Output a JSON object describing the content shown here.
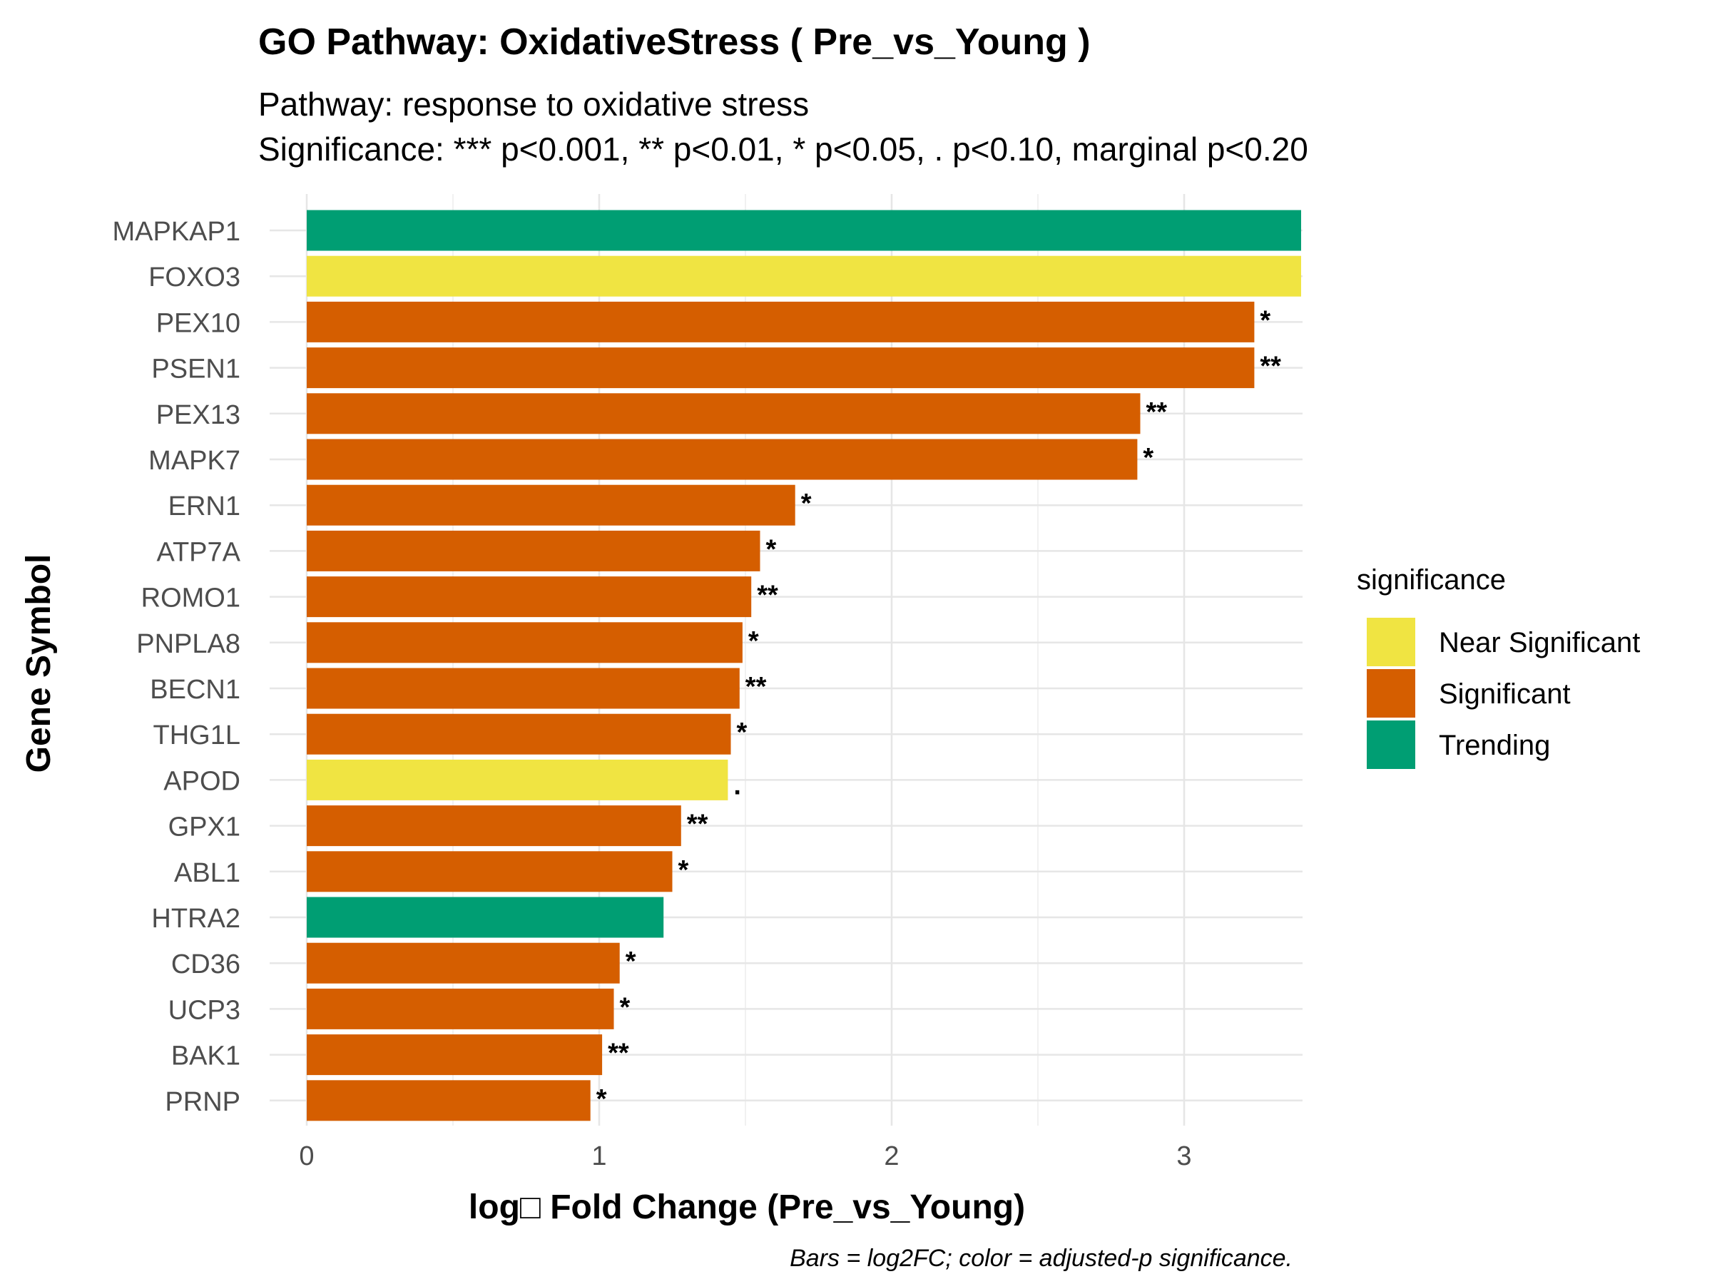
{
  "chart_data": {
    "type": "bar",
    "orientation": "horizontal",
    "title": "GO Pathway: OxidativeStress ( Pre_vs_Young )",
    "subtitle_lines": [
      "Pathway: response to oxidative stress",
      "Significance: *** p<0.001, ** p<0.01, * p<0.05, . p<0.10, marginal p<0.20"
    ],
    "xlabel": "log□ Fold Change (Pre_vs_Young)",
    "ylabel": "Gene Symbol",
    "caption": "Bars = log2FC; color = adjusted-p significance.",
    "xlim": [
      0,
      3.4
    ],
    "x_ticks": [
      0,
      1,
      2,
      3
    ],
    "grid": true,
    "legend": {
      "title": "significance",
      "placement": "right",
      "entries": [
        {
          "label": "Near Significant",
          "color": "#F0E442"
        },
        {
          "label": "Significant",
          "color": "#D55E00"
        },
        {
          "label": "Trending",
          "color": "#009E73"
        }
      ]
    },
    "bars": [
      {
        "gene": "MAPKAP1",
        "value": 3.4,
        "significance": "Trending",
        "label": ""
      },
      {
        "gene": "FOXO3",
        "value": 3.4,
        "significance": "Near Significant",
        "label": ""
      },
      {
        "gene": "PEX10",
        "value": 3.24,
        "significance": "Significant",
        "label": "*"
      },
      {
        "gene": "PSEN1",
        "value": 3.24,
        "significance": "Significant",
        "label": "**"
      },
      {
        "gene": "PEX13",
        "value": 2.85,
        "significance": "Significant",
        "label": "**"
      },
      {
        "gene": "MAPK7",
        "value": 2.84,
        "significance": "Significant",
        "label": "*"
      },
      {
        "gene": "ERN1",
        "value": 1.67,
        "significance": "Significant",
        "label": "*"
      },
      {
        "gene": "ATP7A",
        "value": 1.55,
        "significance": "Significant",
        "label": "*"
      },
      {
        "gene": "ROMO1",
        "value": 1.52,
        "significance": "Significant",
        "label": "**"
      },
      {
        "gene": "PNPLA8",
        "value": 1.49,
        "significance": "Significant",
        "label": "*"
      },
      {
        "gene": "BECN1",
        "value": 1.48,
        "significance": "Significant",
        "label": "**"
      },
      {
        "gene": "THG1L",
        "value": 1.45,
        "significance": "Significant",
        "label": "*"
      },
      {
        "gene": "APOD",
        "value": 1.44,
        "significance": "Near Significant",
        "label": "."
      },
      {
        "gene": "GPX1",
        "value": 1.28,
        "significance": "Significant",
        "label": "**"
      },
      {
        "gene": "ABL1",
        "value": 1.25,
        "significance": "Significant",
        "label": "*"
      },
      {
        "gene": "HTRA2",
        "value": 1.22,
        "significance": "Trending",
        "label": ""
      },
      {
        "gene": "CD36",
        "value": 1.07,
        "significance": "Significant",
        "label": "*"
      },
      {
        "gene": "UCP3",
        "value": 1.05,
        "significance": "Significant",
        "label": "*"
      },
      {
        "gene": "BAK1",
        "value": 1.01,
        "significance": "Significant",
        "label": "**"
      },
      {
        "gene": "PRNP",
        "value": 0.97,
        "significance": "Significant",
        "label": "*"
      }
    ]
  }
}
